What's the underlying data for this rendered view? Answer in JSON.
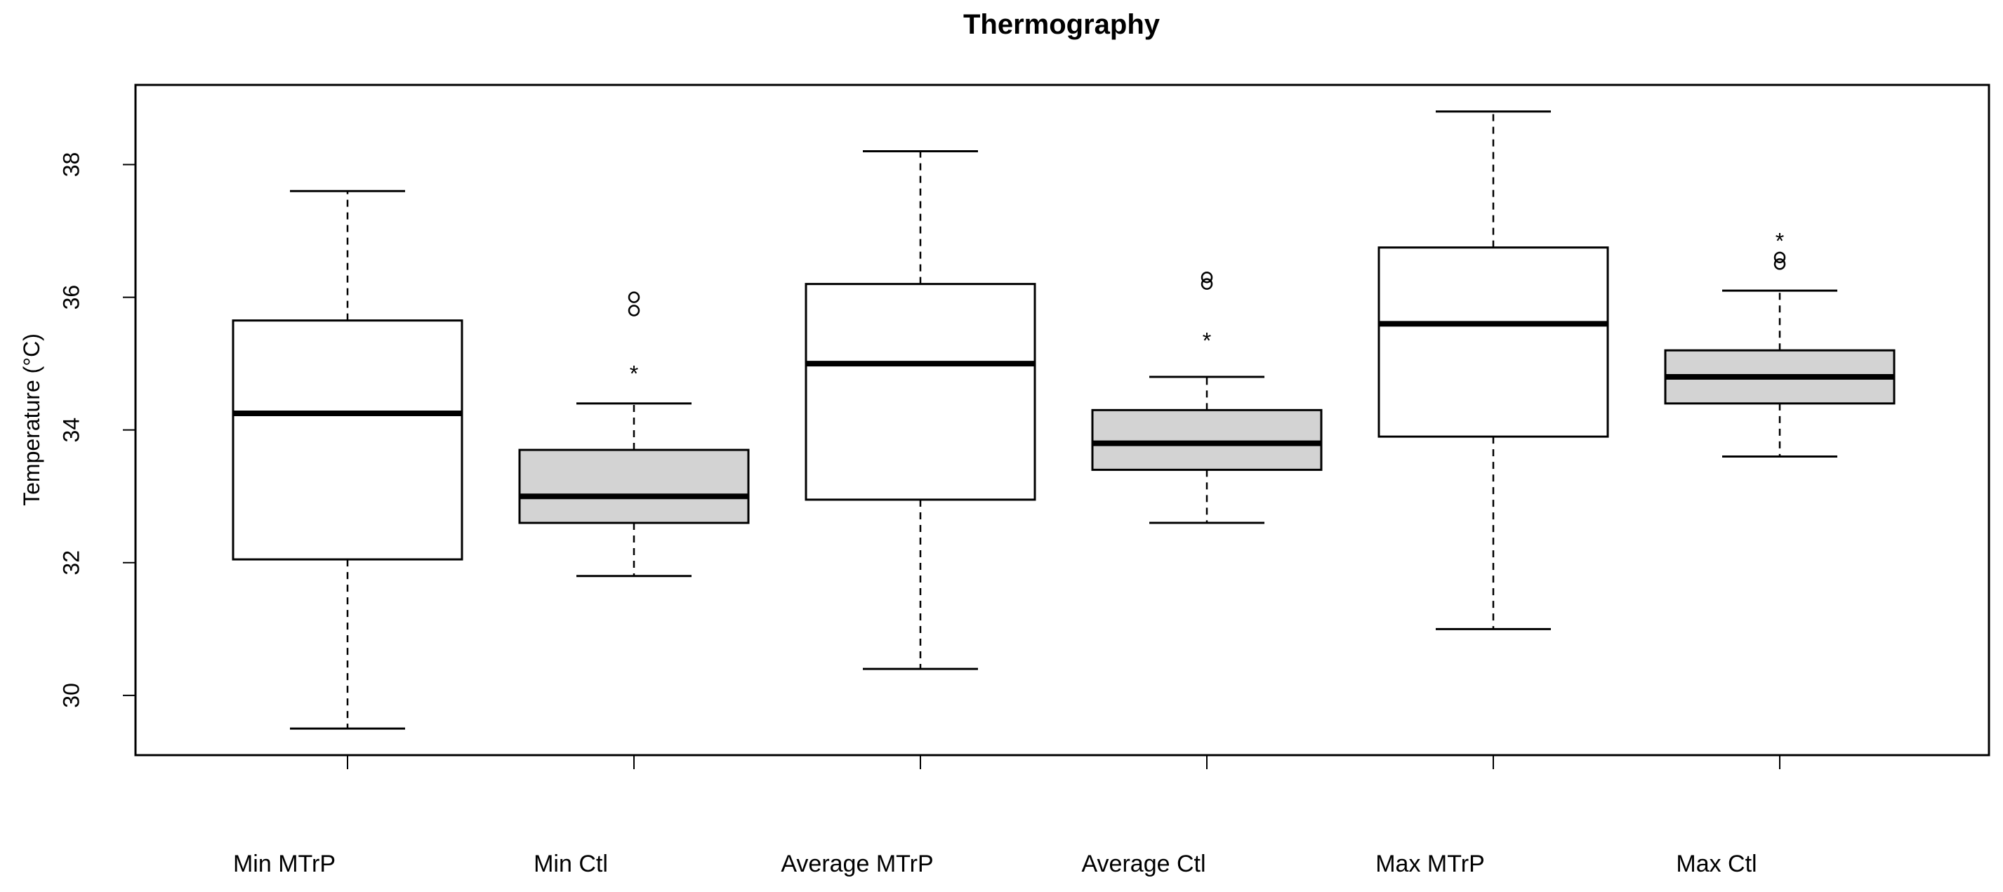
{
  "chart_data": {
    "type": "boxplot",
    "title": "Thermography",
    "xlabel": "",
    "ylabel": "Temperature (°C)",
    "ylim": [
      29.1,
      39.2
    ],
    "yticks": [
      30,
      32,
      34,
      36,
      38
    ],
    "ytick_labels": [
      "30",
      "32",
      "34",
      "36",
      "38"
    ],
    "categories": [
      "Min MTrP",
      "Min Ctl",
      "Average MTrP",
      "Average Ctl",
      "Max MTrP",
      "Max Ctl"
    ],
    "colors": {
      "mtrp_fill": "#ffffff",
      "ctl_fill": "#d3d3d3",
      "stroke": "#000000"
    },
    "boxes": [
      {
        "name": "Min MTrP",
        "lower_whisker": 29.5,
        "q1": 32.05,
        "median": 34.25,
        "q3": 35.65,
        "upper_whisker": 37.6,
        "fill": "#ffffff",
        "outliers": [],
        "extremes": []
      },
      {
        "name": "Min Ctl",
        "lower_whisker": 31.8,
        "q1": 32.6,
        "median": 33.0,
        "q3": 33.7,
        "upper_whisker": 34.4,
        "fill": "#d3d3d3",
        "outliers": [
          35.8,
          36.0
        ],
        "extremes": [
          34.9
        ]
      },
      {
        "name": "Average MTrP",
        "lower_whisker": 30.4,
        "q1": 32.95,
        "median": 35.0,
        "q3": 36.2,
        "upper_whisker": 38.2,
        "fill": "#ffffff",
        "outliers": [],
        "extremes": []
      },
      {
        "name": "Average Ctl",
        "lower_whisker": 32.6,
        "q1": 33.4,
        "median": 33.8,
        "q3": 34.3,
        "upper_whisker": 34.8,
        "fill": "#d3d3d3",
        "outliers": [
          36.2,
          36.3
        ],
        "extremes": [
          35.4
        ]
      },
      {
        "name": "Max MTrP",
        "lower_whisker": 31.0,
        "q1": 33.9,
        "median": 35.6,
        "q3": 36.75,
        "upper_whisker": 38.8,
        "fill": "#ffffff",
        "outliers": [],
        "extremes": []
      },
      {
        "name": "Max Ctl",
        "lower_whisker": 33.6,
        "q1": 34.4,
        "median": 34.8,
        "q3": 35.2,
        "upper_whisker": 36.1,
        "fill": "#d3d3d3",
        "outliers": [
          36.5,
          36.6
        ],
        "extremes": [
          36.9
        ]
      }
    ],
    "outlier_symbol": "○",
    "extreme_symbol": "*"
  }
}
